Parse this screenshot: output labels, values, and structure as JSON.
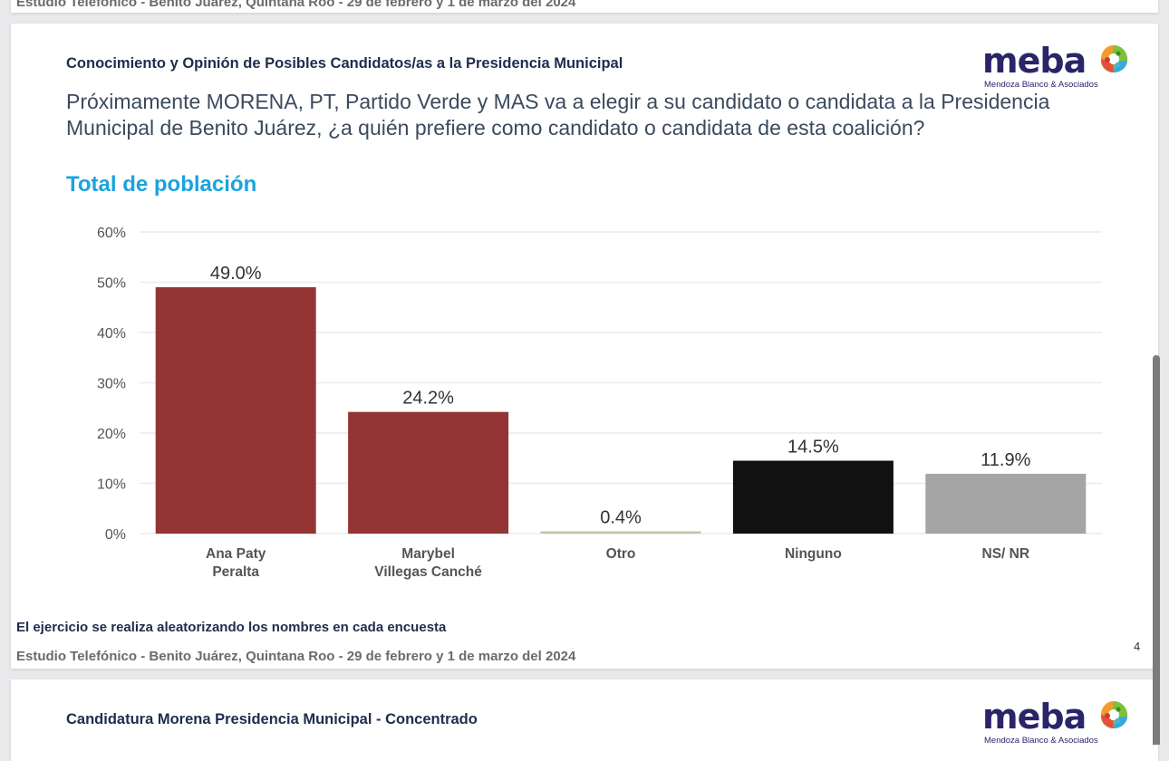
{
  "previous_slide": {
    "footer": "Estudio Telefónico - Benito Juárez, Quintana Roo - 29 de febrero y 1 de marzo del 2024"
  },
  "slide": {
    "section_title": "Conocimiento y Opinión de Posibles Candidatos/as a la Presidencia Municipal",
    "logo": {
      "word": "meba",
      "subtitle": "Mendoza Blanco & Asociados"
    },
    "question": "Próximamente MORENA, PT, Partido Verde y MAS va a elegir a su candidato o candidata a la Presidencia Municipal de Benito Juárez, ¿a quién prefiere como candidato o candidata de esta coalición?",
    "subtitle": "Total de población",
    "note": "El ejercicio se realiza aleatorizando los nombres en cada encuesta",
    "footer": "Estudio Telefónico - Benito Juárez, Quintana Roo - 29 de febrero y 1 de marzo del 2024",
    "page_number": "4"
  },
  "next_slide": {
    "section_title": "Candidatura Morena Presidencia Municipal - Concentrado",
    "logo": {
      "word": "meba",
      "subtitle": "Mendoza Blanco & Asociados"
    }
  },
  "chart_data": {
    "type": "bar",
    "title": "Total de población",
    "categories": [
      [
        "Ana Paty",
        "Peralta"
      ],
      [
        "Marybel",
        "Villegas Canché"
      ],
      [
        "Otro"
      ],
      [
        "Ninguno"
      ],
      [
        "NS/ NR"
      ]
    ],
    "values": [
      49.0,
      24.2,
      0.4,
      14.5,
      11.9
    ],
    "data_labels": [
      "49.0%",
      "24.2%",
      "0.4%",
      "14.5%",
      "11.9%"
    ],
    "colors": [
      "#943535",
      "#943535",
      "#c8c3a6",
      "#111111",
      "#a5a5a5"
    ],
    "ylim": [
      0,
      60
    ],
    "yticks": [
      "0%",
      "10%",
      "20%",
      "30%",
      "40%",
      "50%",
      "60%"
    ],
    "ytick_values": [
      0,
      10,
      20,
      30,
      40,
      50,
      60
    ],
    "xlabel": "",
    "ylabel": "",
    "grid": true,
    "legend": "none"
  }
}
